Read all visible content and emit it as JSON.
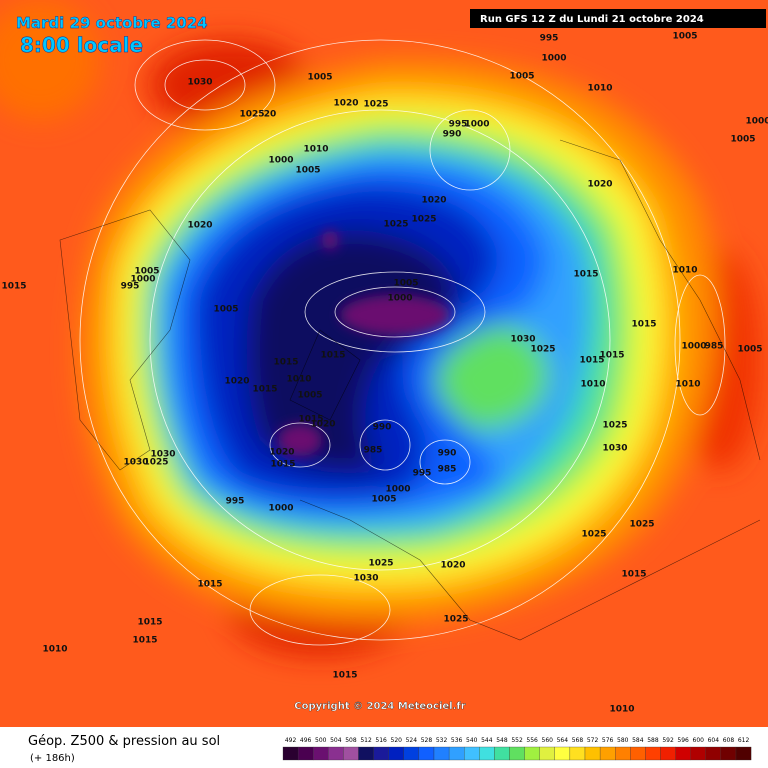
{
  "header": {
    "date": "Mardi 29 octobre 2024",
    "time": "8:00 locale",
    "run": "Run GFS 12 Z du Lundi 21 octobre 2024"
  },
  "map": {
    "isobar_labels": [
      1030,
      1005,
      1020,
      1025,
      1025,
      20,
      1010,
      1000,
      1005,
      995,
      990,
      1000,
      1020,
      1025,
      1025,
      1020,
      1005,
      1000,
      995,
      1015,
      1005,
      1005,
      1000,
      1015,
      1015,
      1020,
      1015,
      1010,
      1005,
      1015,
      1020,
      1020,
      1015,
      990,
      985,
      990,
      985,
      995,
      1000,
      1005,
      1030,
      1025,
      1030,
      995,
      1000,
      1030,
      1025,
      1015,
      1015,
      1015,
      1015,
      1010,
      1025,
      1030,
      1025,
      1025,
      1015,
      1010,
      1000,
      985,
      1005,
      1010,
      1020,
      1010,
      1005,
      1000,
      995,
      1005,
      1005,
      1000,
      1025,
      1030,
      1020,
      1025,
      1015,
      1015,
      1015,
      1010,
      1015,
      1010
    ]
  },
  "copyright": "Copyright © 2024 Meteociel.fr",
  "footer": {
    "title": "Géop. Z500 & pression au sol",
    "lead": "(+ 186h)"
  },
  "colorbar": {
    "levels": [
      492,
      496,
      500,
      504,
      508,
      512,
      516,
      520,
      524,
      528,
      532,
      536,
      540,
      544,
      548,
      552,
      556,
      560,
      564,
      568,
      572,
      576,
      580,
      584,
      588,
      592,
      596,
      600,
      604,
      608,
      612
    ],
    "colors": [
      "#2a0030",
      "#4a0050",
      "#6a1070",
      "#8a3090",
      "#a050a0",
      "#101060",
      "#1a1a9a",
      "#0020c0",
      "#0040e0",
      "#1060ff",
      "#2080ff",
      "#30a0ff",
      "#40c0ff",
      "#40e0e0",
      "#40e0a0",
      "#60e060",
      "#a0f040",
      "#e0f040",
      "#ffff40",
      "#ffe020",
      "#ffc000",
      "#ffa000",
      "#ff8000",
      "#ff6000",
      "#ff4000",
      "#f02000",
      "#d00000",
      "#b00000",
      "#900000",
      "#700000",
      "#500000"
    ]
  }
}
